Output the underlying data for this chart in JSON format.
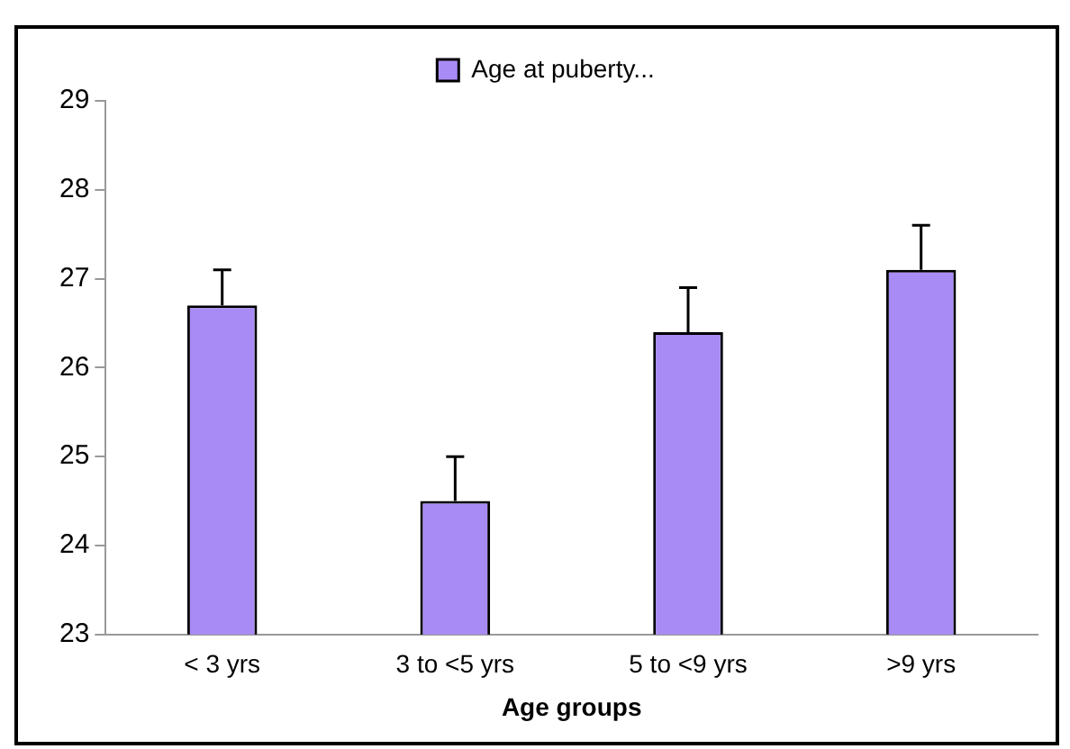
{
  "chart_data": {
    "type": "bar",
    "xlabel": "Age groups",
    "categories": [
      "< 3 yrs",
      "3 to <5 yrs",
      "5 to <9 yrs",
      ">9 yrs"
    ],
    "series": [
      {
        "name": "Age at puberty...",
        "color": "#a98bf5",
        "values": [
          26.7,
          24.5,
          26.4,
          27.1
        ],
        "errors": [
          [
            26.7,
            27.1
          ],
          [
            24.5,
            25
          ],
          [
            26.4,
            26.9
          ],
          [
            27.1,
            27.6
          ]
        ]
      }
    ],
    "ylim": [
      23,
      29
    ],
    "yticks": [
      23,
      24,
      25,
      26,
      27,
      28,
      29
    ],
    "grid": false,
    "legend": "top"
  }
}
